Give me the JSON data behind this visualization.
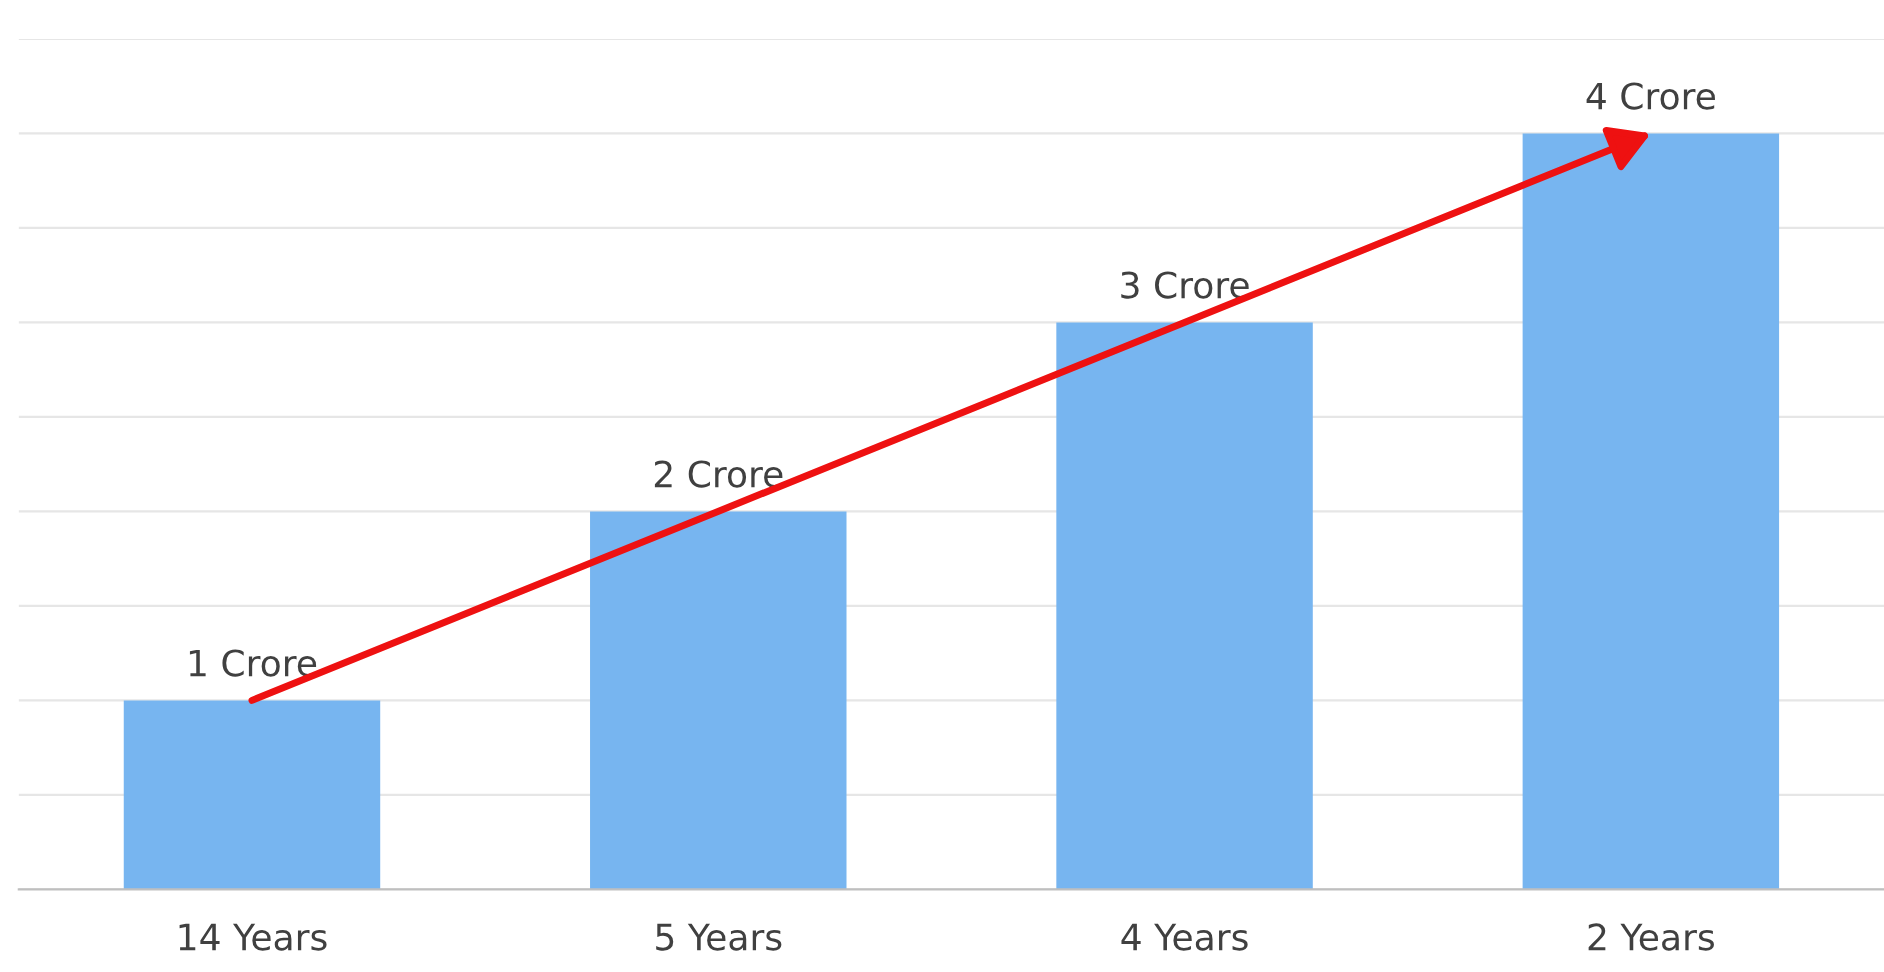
{
  "chart_data": {
    "type": "bar",
    "categories": [
      "14 Years",
      "5 Years",
      "4 Years",
      "2 Years"
    ],
    "values": [
      1,
      2,
      3,
      4
    ],
    "value_labels": [
      "1 Crore",
      "2 Crore",
      "3 Crore",
      "4 Crore"
    ],
    "color": "#77b5f0",
    "ylim": [
      0,
      4.5
    ],
    "yticks": [
      {
        "value": 0,
        "label": null
      },
      {
        "value": 0.5,
        "label": null
      },
      {
        "value": 1,
        "label": null
      },
      {
        "value": 1.5,
        "label": null
      },
      {
        "value": 2,
        "label": null
      },
      {
        "value": 2.5,
        "label": null
      },
      {
        "value": 3,
        "label": null
      },
      {
        "value": 3.5,
        "label": null
      },
      {
        "value": 4,
        "label": null
      },
      {
        "value": 4.5,
        "label": null
      }
    ],
    "grid": "y",
    "tick_labels": "x"
  }
}
